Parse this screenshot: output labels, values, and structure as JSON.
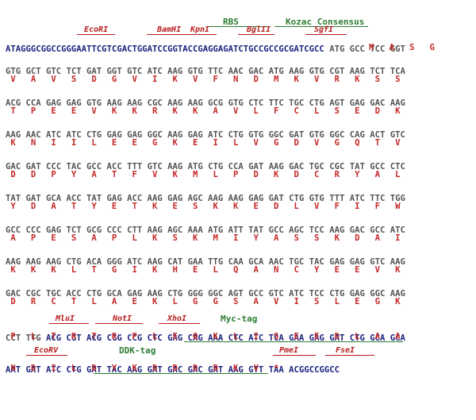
{
  "labels": {
    "ecori": "EcoRI",
    "bamhi": "BamHI",
    "kpni": "KpnI",
    "bglii": "BglII",
    "sgfi": "SgfI",
    "rbs": "RBS",
    "kozac": "Kozac Consensus",
    "mlui": "MluI",
    "noti": "NotI",
    "xhoi": "XhoI",
    "myc": "Myc-tag",
    "ecorv": "EcoRV",
    "ddk": "DDK-tag",
    "pmei": "PmeI",
    "fsei": "FseI"
  },
  "header": {
    "utr": "ATAGGGCGGCCGGGAATTCGTCGACTGGATCCGGTACCGAGGAGATCTGCCGCCGCGATCGCC",
    "codons": " ATG GCC TCC GGT",
    "aa": "M   A   S   G"
  },
  "rows": [
    {
      "dna": "GTG GCT GTC TCT GAT GGT GTC ATC AAG GTG TTC AAC GAC ATG AAG GTG CGT AAG TCT TCA",
      "aa": " V   A   V   S   D   G   V   I   K   V   F   N   D   M   K   V   R   K   S   S"
    },
    {
      "dna": "ACG CCA GAG GAG GTG AAG AAG CGC AAG AAG GCG GTG CTC TTC TGC CTG AGT GAG GAC AAG",
      "aa": " T   P   E   E   V   K   K   R   K   K   A   V   L   F   C   L   S   E   D   K"
    },
    {
      "dna": "AAG AAC ATC ATC CTG GAG GAG GGC AAG GAG ATC CTG GTG GGC GAT GTG GGC CAG ACT GTC",
      "aa": " K   N   I   I   L   E   E   G   K   E   I   L   V   G   D   V   G   Q   T   V"
    },
    {
      "dna": "GAC GAT CCC TAC GCC ACC TTT GTC AAG ATG CTG CCA GAT AAG GAC TGC CGC TAT GCC CTC",
      "aa": " D   D   P   Y   A   T   F   V   K   M   L   P   D   K   D   C   R   Y   A   L"
    },
    {
      "dna": "TAT GAT GCA ACC TAT GAG ACC AAG GAG AGC AAG AAG GAG GAT CTG GTG TTT ATC TTC TGG",
      "aa": " Y   D   A   T   Y   E   T   K   E   S   K   K   E   D   L   V   F   I   F   W"
    },
    {
      "dna": "GCC CCC GAG TCT GCG CCC CTT AAG AGC AAA ATG ATT TAT GCC AGC TCC AAG GAC GCC ATC",
      "aa": " A   P   E   S   A   P   L   K   S   K   M   I   Y   A   S   S   K   D   A   I"
    },
    {
      "dna": "AAG AAG AAG CTG ACA GGG ATC AAG CAT GAA TTG CAA GCA AAC TGC TAC GAG GAG GTC AAG",
      "aa": " K   K   K   L   T   G   I   K   H   E   L   Q   A   N   C   Y   E   E   V   K"
    },
    {
      "dna": "GAC CGC TGC ACC CTG GCA GAG AAG CTG GGG GGC AGT GCC GTC ATC TCC CTG GAG GGC AAG",
      "aa": " D   R   C   T   L   A   E   K   L   G   G   S   A   V   I   S   L   E   G   K"
    }
  ],
  "row10": {
    "dna_a": "CCT TTG ",
    "dna_b": "ACG CGT ACG CGG CCG CTC GAG CAG AAA CTC ATC TCA GAA GAG GAT CTG GCA GCA",
    "aa": " P   L   T   R   T   R   P   L   E   Q   K   L   I   S   E   E   D   L   A   A"
  },
  "row11": {
    "dna_a": "AAT GAT ATC CTG GAT TAC AAG GAT GAC GAC GAT AAG ",
    "dna_b": "GTT TAA ACGGCCGGCC",
    "aa": " N   D   I   L   D   Y   K   D   D   D   D   K   V   *"
  }
}
